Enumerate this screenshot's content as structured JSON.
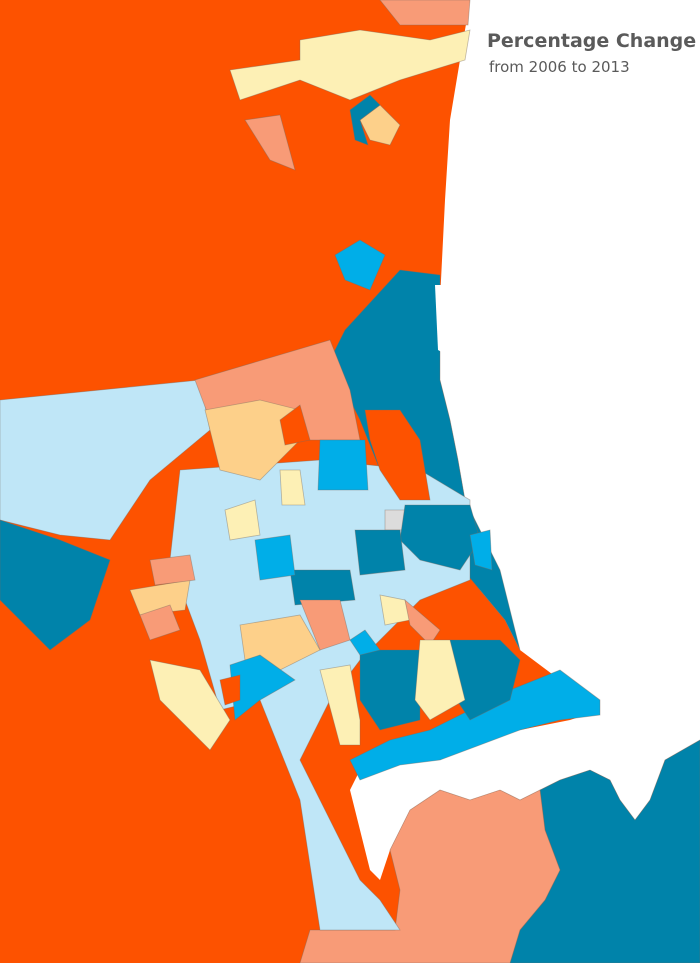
{
  "title": "Percentage Change",
  "subtitle": "from 2006 to 2013"
}
